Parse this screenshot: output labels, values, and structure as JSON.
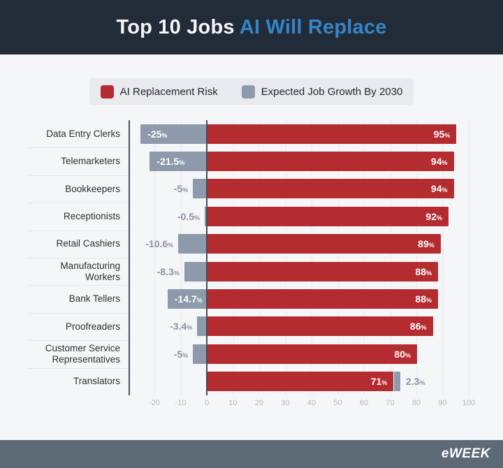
{
  "header": {
    "title_plain": "Top 10 Jobs",
    "title_accent": "AI Will Replace"
  },
  "legend": {
    "items": [
      {
        "label": "AI Replacement Risk",
        "color": "#b42b30"
      },
      {
        "label": "Expected Job Growth By 2030",
        "color": "#8d9aab"
      }
    ]
  },
  "chart_data": {
    "type": "bar",
    "orientation": "horizontal",
    "title": "Top 10 Jobs AI Will Replace",
    "unit": "%",
    "categories": [
      "Data Entry Clerks",
      "Telemarketers",
      "Bookkeepers",
      "Receptionists",
      "Retail Cashiers",
      "Manufacturing Workers",
      "Bank Tellers",
      "Proofreaders",
      "Customer Service Representatives",
      "Translators"
    ],
    "series": [
      {
        "name": "AI Replacement Risk",
        "color": "#b42b30",
        "values": [
          95,
          94,
          94,
          92,
          89,
          88,
          88,
          86,
          80,
          71
        ],
        "labels": [
          "95",
          "94",
          "94",
          "92",
          "89",
          "88",
          "88",
          "86",
          "80",
          "71"
        ]
      },
      {
        "name": "Expected Job Growth By 2030",
        "color": "#8d9aab",
        "values": [
          -25,
          -21.5,
          -5,
          -0.5,
          -10.6,
          -8.3,
          -14.7,
          -3.4,
          -5,
          2.3
        ],
        "labels": [
          "-25",
          "-21.5",
          "-5",
          "-0.5",
          "-10.6",
          "-8.3",
          "-14.7",
          "-3.4",
          "-5",
          "2.3"
        ]
      }
    ],
    "x_ticks": [
      "-20",
      "-10",
      "0",
      "10",
      "20",
      "30",
      "40",
      "50",
      "60",
      "70",
      "80",
      "90",
      "100"
    ],
    "xlim": [
      -29,
      105
    ],
    "grid": true,
    "legend_position": "top"
  },
  "footer": {
    "logo": "eWEEK"
  },
  "colors": {
    "header_bg": "#222b38",
    "title_plain": "#f4f6f8",
    "title_accent": "#3585c6",
    "page_bg": "#f5f6f8",
    "legend_bg": "#e8eaed",
    "risk_red": "#b42b30",
    "growth_gray": "#8d9aab",
    "axis_separator": "#4a5460",
    "zero_line": "#3f4e58",
    "row_divider": "#e4e6ea",
    "category_text": "#2b3038",
    "outside_value_text": "#8a94a2",
    "tick_text": "#b0b8c2",
    "footer_bg": "#5d6a75"
  }
}
